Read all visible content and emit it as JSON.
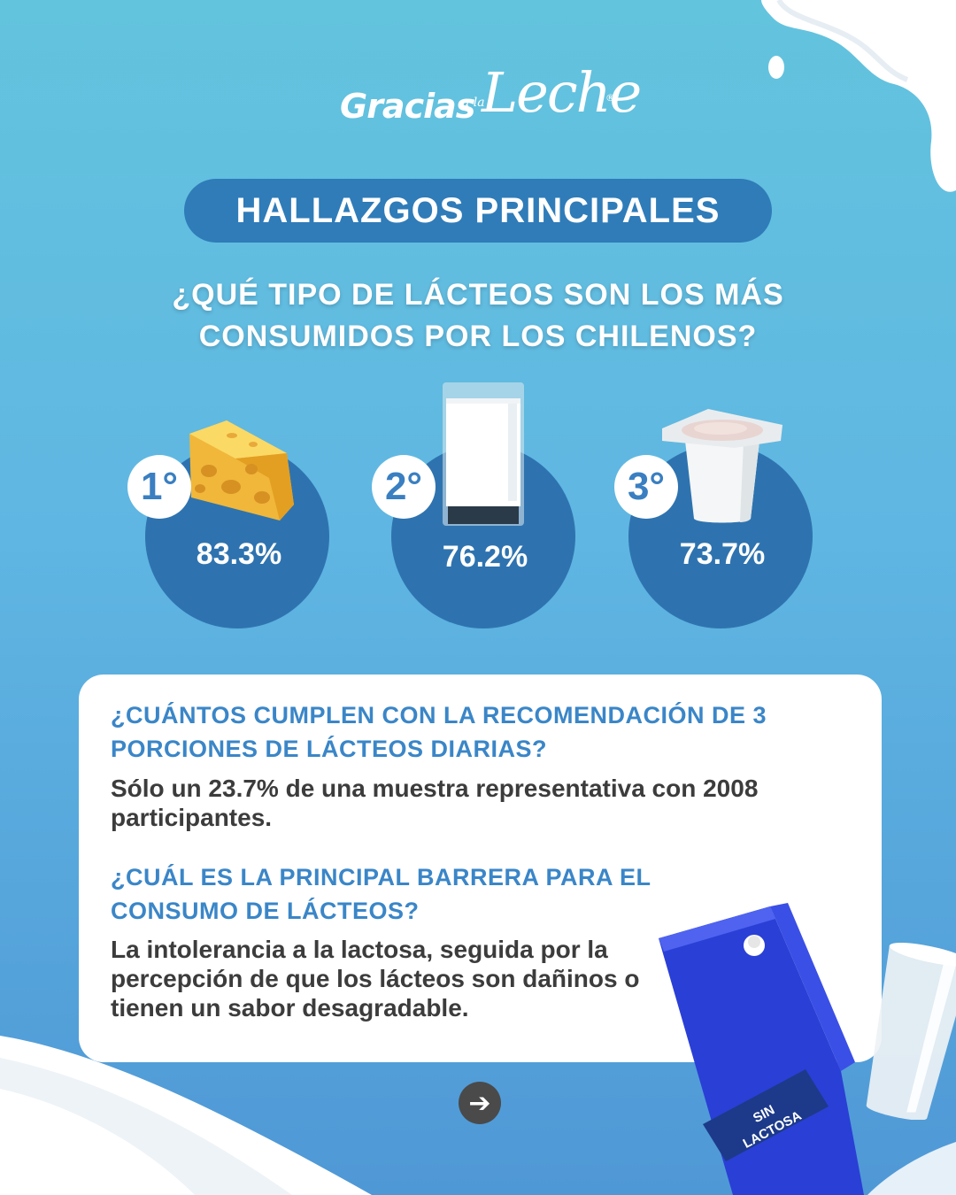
{
  "logo": {
    "word1": "Gracias",
    "word2": "a la",
    "word3": "Leche",
    "mark": "®"
  },
  "header": {
    "title": "HALLAZGOS PRINCIPALES"
  },
  "question": {
    "line1": "¿QUÉ TIPO DE LÁCTEOS SON LOS MÁS",
    "line2": "CONSUMIDOS POR LOS CHILENOS?"
  },
  "ranking": [
    {
      "rank": "1°",
      "percent": "83.3%",
      "icon": "cheese-icon"
    },
    {
      "rank": "2°",
      "percent": "76.2%",
      "icon": "milk-glass-icon"
    },
    {
      "rank": "3°",
      "percent": "73.7%",
      "icon": "yogurt-cup-icon"
    }
  ],
  "card": {
    "q1_title_line1": "¿CUÁNTOS CUMPLEN CON LA RECOMENDACIÓN DE 3",
    "q1_title_line2": "PORCIONES DE LÁCTEOS DIARIAS?",
    "q1_answer_line1": "Sólo un 23.7% de una muestra representativa con 2008",
    "q1_answer_line2": "participantes.",
    "q2_title_line1": "¿CUÁL ES LA PRINCIPAL BARRERA PARA EL",
    "q2_title_line2": "CONSUMO DE LÁCTEOS?",
    "q2_answer_line1": "La intolerancia a la lactosa, seguida por la",
    "q2_answer_line2": "percepción de que los lácteos son dañinos o",
    "q2_answer_line3": "tienen un sabor desagradable."
  },
  "carton": {
    "label_line1": "SIN",
    "label_line2": "LACTOSA"
  },
  "navigation": {
    "next_icon": "arrow-right-icon",
    "next_symbol": "➔"
  },
  "colors": {
    "pill": "#2f7cb9",
    "circle": "#2e73af",
    "card_title": "#3a86c8",
    "carton": "#2a3fd6"
  }
}
